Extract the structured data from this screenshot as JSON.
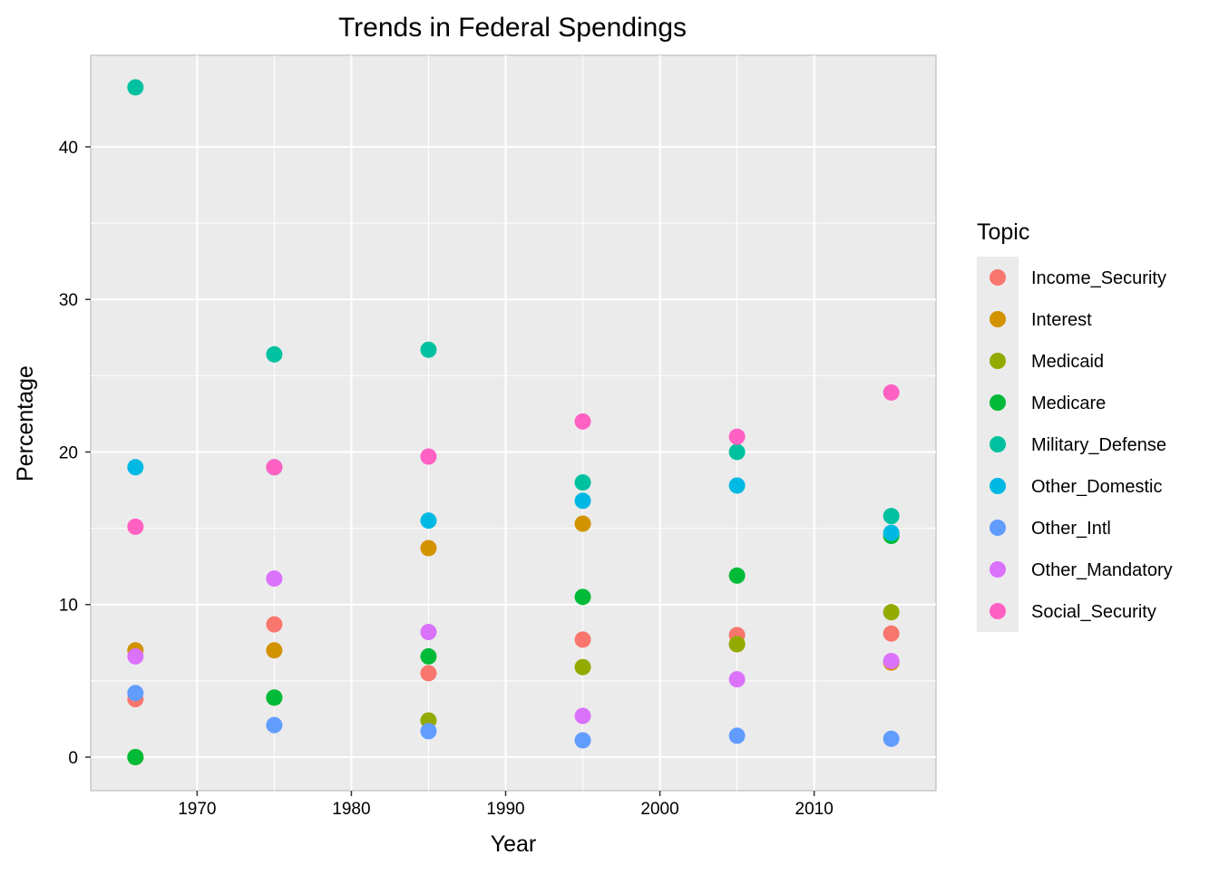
{
  "chart_data": {
    "type": "scatter",
    "title": "Trends in Federal Spendings",
    "xlabel": "Year",
    "ylabel": "Percentage",
    "xlim": [
      1963.1,
      2017.9
    ],
    "ylim": [
      -2.2,
      46.0
    ],
    "x_ticks": [
      1970,
      1980,
      1990,
      2000,
      2010
    ],
    "y_ticks": [
      0,
      10,
      20,
      30,
      40
    ],
    "grid": true,
    "legend": {
      "title": "Topic",
      "position": "right"
    },
    "x": [
      1966,
      1975,
      1985,
      1995,
      2005,
      2015
    ],
    "series": [
      {
        "name": "Income_Security",
        "color": "#F8766D",
        "values": [
          3.8,
          8.7,
          5.5,
          7.7,
          8.0,
          8.1
        ]
      },
      {
        "name": "Interest",
        "color": "#D39200",
        "values": [
          7.0,
          7.0,
          13.7,
          15.3,
          7.4,
          6.2
        ]
      },
      {
        "name": "Medicaid",
        "color": "#93AA00",
        "values": [
          0.0,
          3.9,
          2.4,
          5.9,
          7.4,
          9.5
        ]
      },
      {
        "name": "Medicare",
        "color": "#00BA38",
        "values": [
          0.0,
          3.9,
          6.6,
          10.5,
          11.9,
          14.5
        ]
      },
      {
        "name": "Military_Defense",
        "color": "#00C19F",
        "values": [
          43.9,
          26.4,
          26.7,
          18.0,
          20.0,
          15.8
        ]
      },
      {
        "name": "Other_Domestic",
        "color": "#00B9E3",
        "values": [
          19.0,
          19.0,
          15.5,
          16.8,
          17.8,
          14.7
        ]
      },
      {
        "name": "Other_Intl",
        "color": "#619CFF",
        "values": [
          4.2,
          2.1,
          1.7,
          1.1,
          1.4,
          1.2
        ]
      },
      {
        "name": "Other_Mandatory",
        "color": "#DB72FB",
        "values": [
          6.6,
          11.7,
          8.2,
          2.7,
          5.1,
          6.3
        ]
      },
      {
        "name": "Social_Security",
        "color": "#FF61C3",
        "values": [
          15.1,
          19.0,
          19.7,
          22.0,
          21.0,
          23.9
        ]
      }
    ]
  }
}
